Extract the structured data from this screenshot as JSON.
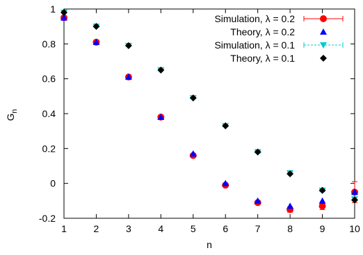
{
  "chart_data": {
    "type": "scatter",
    "title": "",
    "xlabel": "n",
    "ylabel": "G",
    "ylabel_subscript": "n",
    "xlim": [
      1,
      10
    ],
    "ylim": [
      -0.2,
      1
    ],
    "xticks": [
      "1",
      "2",
      "3",
      "4",
      "5",
      "6",
      "7",
      "8",
      "9",
      "10"
    ],
    "yticks": [
      "-0.2",
      "0",
      "0.2",
      "0.4",
      "0.6",
      "0.8",
      "1"
    ],
    "grid": false,
    "legend_position": "top-right",
    "series": [
      {
        "name": "Simulation, λ = 0.2",
        "marker": "circle",
        "color": "#ff0000",
        "error_bars": true,
        "x": [
          1,
          2,
          3,
          4,
          5,
          6,
          7,
          8,
          9,
          10
        ],
        "y": [
          0.95,
          0.81,
          0.61,
          0.38,
          0.16,
          -0.01,
          -0.11,
          -0.15,
          -0.13,
          -0.05
        ],
        "err": [
          0.005,
          0.005,
          0.005,
          0.005,
          0.005,
          0.006,
          0.01,
          0.015,
          0.02,
          0.06
        ]
      },
      {
        "name": "Theory, λ = 0.2",
        "marker": "triangle",
        "color": "#0000ff",
        "x": [
          1,
          2,
          3,
          4,
          5,
          6,
          7,
          8,
          9,
          10
        ],
        "y": [
          0.95,
          0.81,
          0.61,
          0.38,
          0.17,
          0.0,
          -0.1,
          -0.13,
          -0.1,
          -0.05
        ]
      },
      {
        "name": "Simulation, λ = 0.1",
        "marker": "triangle-down",
        "color": "#00cccc",
        "error_bars": true,
        "x": [
          1,
          2,
          3,
          4,
          5,
          6,
          7,
          8,
          9,
          10
        ],
        "y": [
          0.98,
          0.9,
          0.79,
          0.65,
          0.49,
          0.33,
          0.18,
          0.06,
          -0.04,
          -0.09
        ],
        "err": [
          0.003,
          0.003,
          0.003,
          0.003,
          0.003,
          0.004,
          0.005,
          0.006,
          0.008,
          0.01
        ]
      },
      {
        "name": "Theory, λ = 0.1",
        "marker": "diamond",
        "color": "#000000",
        "x": [
          1,
          2,
          3,
          4,
          5,
          6,
          7,
          8,
          9,
          10
        ],
        "y": [
          0.98,
          0.9,
          0.79,
          0.65,
          0.49,
          0.33,
          0.18,
          0.055,
          -0.04,
          -0.095
        ]
      }
    ]
  }
}
